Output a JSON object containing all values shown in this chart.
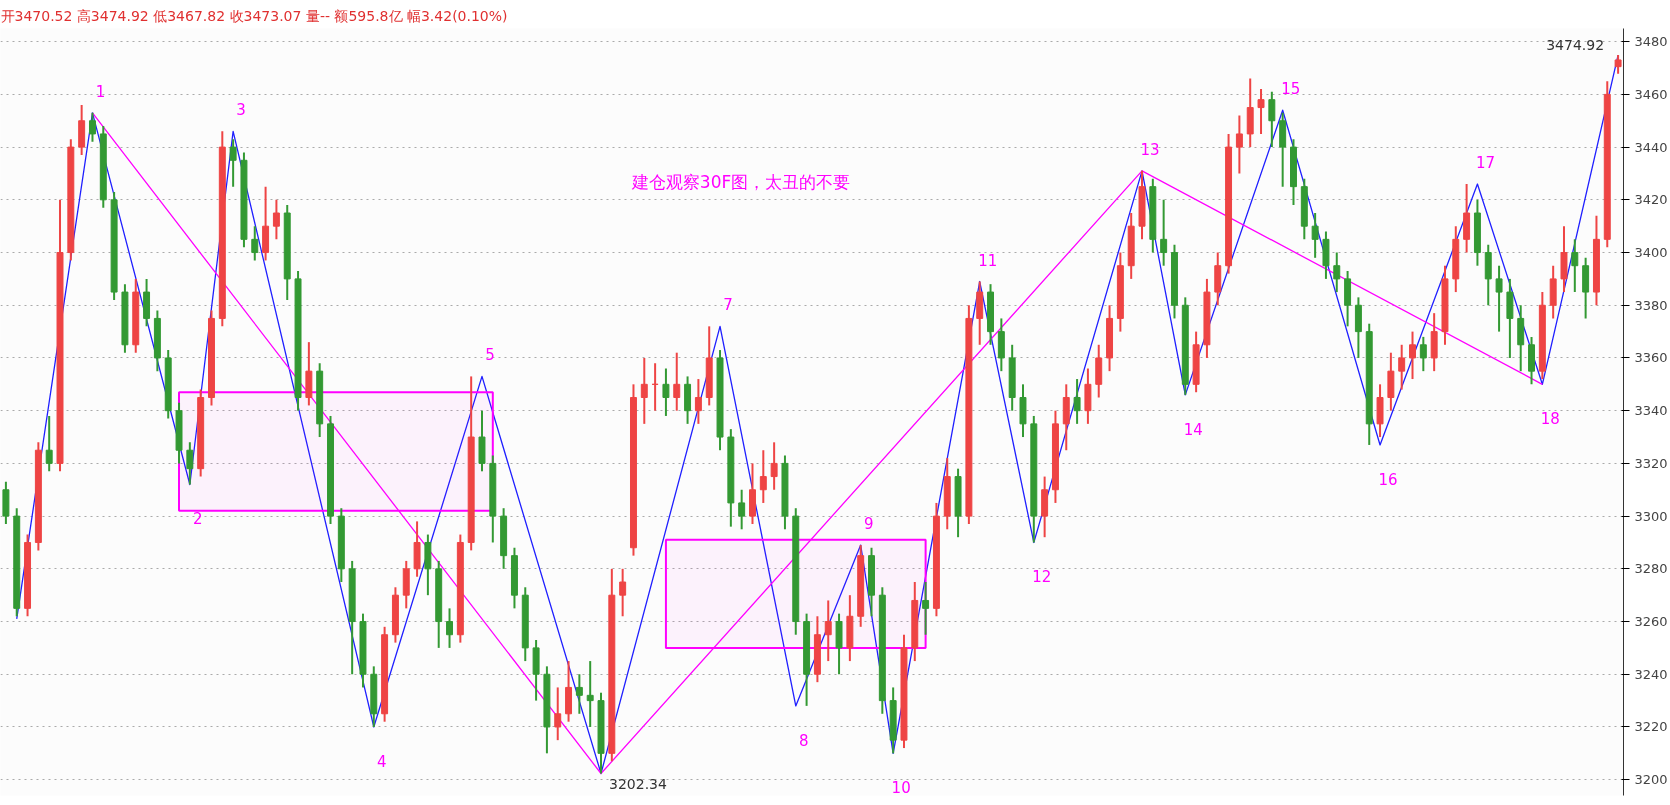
{
  "chart_data": {
    "type": "candlestick",
    "categories": [
      null,
      null,
      null,
      null,
      null,
      null,
      null,
      null,
      null,
      null,
      null,
      null,
      null,
      null,
      null,
      null,
      null,
      null,
      null,
      null,
      null,
      null,
      null,
      null,
      null,
      null,
      null,
      null,
      null,
      null,
      null,
      null,
      null,
      null,
      null,
      null,
      null,
      null,
      null,
      null,
      null,
      null,
      null,
      null,
      null,
      null,
      null,
      null,
      null,
      null,
      null,
      null,
      null,
      null,
      null,
      null,
      null,
      null,
      null,
      null,
      null,
      null,
      null,
      null,
      null,
      null,
      null,
      null,
      null,
      null,
      null,
      null,
      null,
      null,
      null,
      null,
      null,
      null,
      null,
      null,
      null,
      null,
      null,
      null,
      null,
      null,
      null,
      null,
      null,
      null,
      null,
      null,
      null,
      null,
      null,
      null,
      null,
      null,
      null,
      null,
      null,
      null,
      null,
      null,
      null,
      null,
      null,
      null,
      null,
      null,
      null,
      null,
      null,
      null,
      null,
      null,
      null,
      null,
      null,
      null,
      null,
      null,
      null,
      null,
      null,
      null,
      null,
      null,
      null,
      null,
      null,
      null,
      null,
      null,
      null,
      null,
      null,
      null,
      null,
      null,
      null,
      null,
      null,
      null,
      null,
      null,
      null,
      null,
      null,
      null
    ],
    "ohlc": [
      [
        3310,
        3313,
        3297,
        3300
      ],
      [
        3300,
        3303,
        3262,
        3265
      ],
      [
        3265,
        3293,
        3262,
        3290
      ],
      [
        3290,
        3328,
        3287,
        3325
      ],
      [
        3325,
        3338,
        3317,
        3320
      ],
      [
        3320,
        3420,
        3317,
        3400
      ],
      [
        3400,
        3443,
        3397,
        3440
      ],
      [
        3440,
        3456,
        3437,
        3450
      ],
      [
        3450,
        3453,
        3442,
        3445
      ],
      [
        3445,
        3448,
        3417,
        3420
      ],
      [
        3420,
        3423,
        3382,
        3385
      ],
      [
        3385,
        3388,
        3362,
        3365
      ],
      [
        3365,
        3390,
        3362,
        3385
      ],
      [
        3385,
        3390,
        3372,
        3375
      ],
      [
        3375,
        3378,
        3355,
        3360
      ],
      [
        3360,
        3363,
        3337,
        3340
      ],
      [
        3340,
        3343,
        3320,
        3325
      ],
      [
        3325,
        3328,
        3312,
        3318
      ],
      [
        3318,
        3348,
        3315,
        3345
      ],
      [
        3345,
        3378,
        3342,
        3375
      ],
      [
        3375,
        3446,
        3372,
        3440
      ],
      [
        3440,
        3443,
        3425,
        3435
      ],
      [
        3435,
        3438,
        3402,
        3405
      ],
      [
        3405,
        3410,
        3397,
        3400
      ],
      [
        3400,
        3425,
        3397,
        3410
      ],
      [
        3410,
        3420,
        3405,
        3415
      ],
      [
        3415,
        3418,
        3382,
        3390
      ],
      [
        3390,
        3393,
        3340,
        3345
      ],
      [
        3345,
        3366,
        3342,
        3355
      ],
      [
        3355,
        3358,
        3330,
        3335
      ],
      [
        3335,
        3338,
        3297,
        3300
      ],
      [
        3300,
        3303,
        3275,
        3280
      ],
      [
        3280,
        3283,
        3240,
        3260
      ],
      [
        3260,
        3263,
        3235,
        3240
      ],
      [
        3240,
        3243,
        3220,
        3225
      ],
      [
        3225,
        3258,
        3222,
        3255
      ],
      [
        3255,
        3273,
        3252,
        3270
      ],
      [
        3270,
        3283,
        3265,
        3280
      ],
      [
        3280,
        3298,
        3277,
        3290
      ],
      [
        3290,
        3293,
        3270,
        3280
      ],
      [
        3280,
        3283,
        3250,
        3260
      ],
      [
        3260,
        3265,
        3250,
        3255
      ],
      [
        3255,
        3293,
        3252,
        3290
      ],
      [
        3290,
        3353,
        3287,
        3330
      ],
      [
        3330,
        3340,
        3317,
        3320
      ],
      [
        3320,
        3323,
        3290,
        3300
      ],
      [
        3300,
        3303,
        3280,
        3285
      ],
      [
        3285,
        3288,
        3265,
        3270
      ],
      [
        3270,
        3273,
        3245,
        3250
      ],
      [
        3250,
        3253,
        3230,
        3240
      ],
      [
        3240,
        3243,
        3210,
        3220
      ],
      [
        3220,
        3235,
        3215,
        3225
      ],
      [
        3225,
        3245,
        3222,
        3235
      ],
      [
        3235,
        3240,
        3225,
        3232
      ],
      [
        3232,
        3245,
        3220,
        3230
      ],
      [
        3230,
        3233,
        3202.34,
        3210
      ],
      [
        3210,
        3280,
        3207,
        3270
      ],
      [
        3270,
        3280,
        3262,
        3275
      ],
      [
        3288,
        3350,
        3285,
        3345
      ],
      [
        3345,
        3360,
        3335,
        3350
      ],
      [
        3350,
        3358,
        3340,
        3350
      ],
      [
        3350,
        3356,
        3338,
        3345
      ],
      [
        3345,
        3362,
        3340,
        3350
      ],
      [
        3350,
        3353,
        3335,
        3340
      ],
      [
        3340,
        3352,
        3335,
        3345
      ],
      [
        3345,
        3372,
        3342,
        3360
      ],
      [
        3360,
        3363,
        3325,
        3330
      ],
      [
        3330,
        3333,
        3296,
        3305
      ],
      [
        3305,
        3310,
        3295,
        3300
      ],
      [
        3300,
        3320,
        3297,
        3310
      ],
      [
        3310,
        3325,
        3305,
        3315
      ],
      [
        3315,
        3328,
        3310,
        3320
      ],
      [
        3320,
        3323,
        3295,
        3300
      ],
      [
        3300,
        3303,
        3255,
        3260
      ],
      [
        3260,
        3263,
        3228,
        3240
      ],
      [
        3240,
        3262,
        3237,
        3255
      ],
      [
        3255,
        3268,
        3245,
        3260
      ],
      [
        3260,
        3263,
        3240,
        3250
      ],
      [
        3250,
        3270,
        3245,
        3262
      ],
      [
        3262,
        3289,
        3258,
        3285
      ],
      [
        3285,
        3288,
        3262,
        3270
      ],
      [
        3270,
        3273,
        3225,
        3230
      ],
      [
        3230,
        3235,
        3210,
        3215
      ],
      [
        3215,
        3255,
        3212,
        3250
      ],
      [
        3250,
        3275,
        3245,
        3268
      ],
      [
        3268,
        3275,
        3255,
        3265
      ],
      [
        3265,
        3305,
        3262,
        3300
      ],
      [
        3300,
        3322,
        3295,
        3315
      ],
      [
        3315,
        3318,
        3292,
        3300
      ],
      [
        3300,
        3380,
        3297,
        3375
      ],
      [
        3375,
        3389,
        3365,
        3385
      ],
      [
        3385,
        3388,
        3365,
        3370
      ],
      [
        3370,
        3375,
        3355,
        3360
      ],
      [
        3360,
        3365,
        3340,
        3345
      ],
      [
        3345,
        3350,
        3330,
        3335
      ],
      [
        3335,
        3338,
        3290,
        3300
      ],
      [
        3300,
        3315,
        3292,
        3310
      ],
      [
        3310,
        3340,
        3305,
        3335
      ],
      [
        3335,
        3350,
        3325,
        3345
      ],
      [
        3345,
        3352,
        3335,
        3340
      ],
      [
        3340,
        3356,
        3335,
        3350
      ],
      [
        3350,
        3365,
        3345,
        3360
      ],
      [
        3360,
        3380,
        3355,
        3375
      ],
      [
        3375,
        3400,
        3370,
        3395
      ],
      [
        3395,
        3415,
        3390,
        3410
      ],
      [
        3410,
        3431,
        3405,
        3425
      ],
      [
        3425,
        3428,
        3400,
        3405
      ],
      [
        3405,
        3420,
        3395,
        3400
      ],
      [
        3400,
        3403,
        3375,
        3380
      ],
      [
        3380,
        3383,
        3346,
        3350
      ],
      [
        3350,
        3370,
        3347,
        3365
      ],
      [
        3365,
        3390,
        3360,
        3385
      ],
      [
        3385,
        3400,
        3380,
        3395
      ],
      [
        3395,
        3445,
        3392,
        3440
      ],
      [
        3440,
        3452,
        3430,
        3445
      ],
      [
        3445,
        3466,
        3440,
        3455
      ],
      [
        3455,
        3462,
        3445,
        3458
      ],
      [
        3458,
        3461,
        3440,
        3450
      ],
      [
        3450,
        3453,
        3425,
        3440
      ],
      [
        3440,
        3443,
        3418,
        3425
      ],
      [
        3425,
        3428,
        3405,
        3410
      ],
      [
        3410,
        3415,
        3398,
        3405
      ],
      [
        3405,
        3408,
        3390,
        3395
      ],
      [
        3395,
        3400,
        3385,
        3390
      ],
      [
        3390,
        3393,
        3372,
        3380
      ],
      [
        3380,
        3383,
        3360,
        3370
      ],
      [
        3370,
        3373,
        3327,
        3335
      ],
      [
        3335,
        3350,
        3330,
        3345
      ],
      [
        3345,
        3362,
        3340,
        3355
      ],
      [
        3355,
        3365,
        3348,
        3360
      ],
      [
        3360,
        3370,
        3352,
        3365
      ],
      [
        3365,
        3368,
        3355,
        3360
      ],
      [
        3360,
        3377,
        3355,
        3370
      ],
      [
        3370,
        3395,
        3365,
        3390
      ],
      [
        3390,
        3410,
        3385,
        3405
      ],
      [
        3405,
        3426,
        3400,
        3415
      ],
      [
        3415,
        3420,
        3395,
        3400
      ],
      [
        3400,
        3403,
        3380,
        3390
      ],
      [
        3390,
        3395,
        3370,
        3385
      ],
      [
        3385,
        3390,
        3360,
        3375
      ],
      [
        3375,
        3380,
        3355,
        3365
      ],
      [
        3365,
        3368,
        3350,
        3355
      ],
      [
        3355,
        3385,
        3352,
        3380
      ],
      [
        3380,
        3395,
        3375,
        3390
      ],
      [
        3390,
        3410,
        3385,
        3400
      ],
      [
        3400,
        3405,
        3385,
        3395
      ],
      [
        3395,
        3398,
        3375,
        3385
      ],
      [
        3385,
        3414,
        3380,
        3405
      ],
      [
        3405,
        3465,
        3402,
        3460
      ],
      [
        3470.52,
        3474.92,
        3467.82,
        3473.07
      ]
    ],
    "colors": [
      "#339933",
      "#339933",
      "#ee4444",
      "#ee4444",
      "#339933",
      "#ee4444",
      "#ee4444",
      "#ee4444",
      "#339933",
      "#339933",
      "#339933",
      "#339933",
      "#ee4444",
      "#339933",
      "#339933",
      "#339933",
      "#339933",
      "#339933",
      "#ee4444",
      "#ee4444",
      "#ee4444",
      "#339933",
      "#339933",
      "#339933",
      "#ee4444",
      "#ee4444",
      "#339933",
      "#339933",
      "#ee4444",
      "#339933",
      "#339933",
      "#339933",
      "#339933",
      "#339933",
      "#339933",
      "#ee4444",
      "#ee4444",
      "#ee4444",
      "#ee4444",
      "#339933",
      "#339933",
      "#339933",
      "#ee4444",
      "#ee4444",
      "#339933",
      "#339933",
      "#339933",
      "#339933",
      "#339933",
      "#339933",
      "#339933",
      "#ee4444",
      "#ee4444",
      "#339933",
      "#339933",
      "#339933",
      "#ee4444",
      "#ee4444",
      "#ee4444",
      "#ee4444",
      "#ee4444",
      "#339933",
      "#ee4444",
      "#339933",
      "#ee4444",
      "#ee4444",
      "#339933",
      "#339933",
      "#339933",
      "#ee4444",
      "#ee4444",
      "#ee4444",
      "#339933",
      "#339933",
      "#339933",
      "#ee4444",
      "#ee4444",
      "#339933",
      "#ee4444",
      "#ee4444",
      "#339933",
      "#339933",
      "#339933",
      "#ee4444",
      "#ee4444",
      "#339933",
      "#ee4444",
      "#ee4444",
      "#339933",
      "#ee4444",
      "#ee4444",
      "#339933",
      "#339933",
      "#339933",
      "#339933",
      "#339933",
      "#ee4444",
      "#ee4444",
      "#ee4444",
      "#339933",
      "#ee4444",
      "#ee4444",
      "#ee4444",
      "#ee4444",
      "#ee4444",
      "#ee4444",
      "#339933",
      "#339933",
      "#339933",
      "#339933",
      "#ee4444",
      "#ee4444",
      "#ee4444",
      "#ee4444",
      "#ee4444",
      "#ee4444",
      "#ee4444",
      "#339933",
      "#339933",
      "#339933",
      "#339933",
      "#339933",
      "#339933",
      "#339933",
      "#339933",
      "#339933",
      "#339933",
      "#ee4444",
      "#ee4444",
      "#ee4444",
      "#ee4444",
      "#339933",
      "#ee4444",
      "#ee4444",
      "#ee4444",
      "#ee4444",
      "#339933",
      "#339933",
      "#339933",
      "#339933",
      "#339933",
      "#339933",
      "#ee4444",
      "#ee4444",
      "#ee4444",
      "#339933",
      "#339933",
      "#ee4444",
      "#ee4444",
      "#ee4444"
    ],
    "series": [
      {
        "type": "line",
        "color": "#1f1fff",
        "values": [
          null,
          3261,
          null,
          null,
          null,
          null,
          null,
          null,
          3453,
          null,
          null,
          null,
          null,
          null,
          null,
          null,
          null,
          3312,
          null,
          null,
          null,
          3446,
          null,
          null,
          null,
          null,
          null,
          null,
          null,
          null,
          null,
          null,
          null,
          null,
          3220,
          null,
          null,
          null,
          null,
          null,
          null,
          null,
          null,
          null,
          3353,
          null,
          null,
          null,
          null,
          null,
          null,
          null,
          null,
          null,
          null,
          3202.34,
          null,
          null,
          null,
          null,
          null,
          null,
          null,
          null,
          null,
          null,
          3372,
          null,
          null,
          null,
          null,
          null,
          null,
          3228,
          null,
          null,
          null,
          null,
          null,
          3289,
          null,
          null,
          3210,
          null,
          null,
          null,
          null,
          null,
          null,
          null,
          3389,
          null,
          null,
          null,
          null,
          3290,
          null,
          null,
          null,
          null,
          null,
          null,
          null,
          null,
          null,
          3431,
          null,
          null,
          null,
          3346,
          null,
          null,
          null,
          null,
          null,
          null,
          null,
          null,
          3454,
          null,
          null,
          null,
          null,
          null,
          null,
          null,
          null,
          3327,
          null,
          null,
          null,
          null,
          null,
          null,
          null,
          null,
          3426,
          null,
          null,
          null,
          null,
          null,
          3350,
          null,
          null,
          null,
          null,
          null,
          null,
          3474.92
        ],
        "value_labels": [
          null,
          null,
          null,
          null,
          null,
          null,
          null,
          null,
          null,
          null,
          null,
          null,
          null,
          null,
          null,
          null,
          null,
          null,
          null,
          null,
          null,
          null,
          null,
          null,
          null,
          null,
          null,
          null,
          null,
          null,
          null,
          null,
          null,
          null,
          null,
          null,
          null,
          null,
          null,
          null,
          null,
          null,
          null,
          null,
          null,
          null,
          null,
          null,
          null,
          null,
          null,
          null,
          null,
          null,
          null,
          "3202.34",
          null,
          null,
          null,
          null,
          null,
          null,
          null,
          null,
          null,
          null,
          null,
          null,
          null,
          null,
          null,
          null,
          null,
          null,
          null,
          null,
          null,
          null,
          null,
          null,
          null,
          null,
          null,
          null,
          null,
          null,
          null,
          null,
          null,
          null,
          null,
          null,
          null,
          null,
          null,
          null,
          null,
          null,
          null,
          null,
          null,
          null,
          null,
          null,
          null,
          null,
          null,
          null,
          null,
          null,
          null,
          null,
          null,
          null,
          null,
          null,
          null,
          null,
          null,
          null,
          null,
          null,
          null,
          null,
          null,
          null,
          null,
          null,
          null,
          null,
          null,
          null,
          null,
          null,
          null,
          null,
          null,
          null,
          null,
          null,
          null,
          null,
          null,
          null,
          null,
          null,
          null,
          null,
          null,
          "3474.92"
        ]
      },
      {
        "type": "line",
        "color": "#ff00ff",
        "values": [
          null,
          null,
          null,
          null,
          null,
          null,
          null,
          null,
          3453,
          null,
          null,
          null,
          null,
          null,
          null,
          null,
          null,
          null,
          null,
          null,
          null,
          null,
          null,
          null,
          null,
          null,
          null,
          null,
          null,
          null,
          null,
          null,
          null,
          null,
          null,
          null,
          null,
          null,
          null,
          null,
          null,
          null,
          null,
          null,
          null,
          null,
          null,
          null,
          null,
          null,
          null,
          null,
          null,
          null,
          null,
          3202.34,
          null,
          null,
          null,
          null,
          null,
          null,
          null,
          null,
          null,
          null,
          null,
          null,
          null,
          null,
          null,
          null,
          null,
          null,
          null,
          null,
          null,
          null,
          null,
          null,
          null,
          null,
          null,
          null,
          null,
          null,
          null,
          null,
          null,
          null,
          null,
          null,
          null,
          null,
          null,
          null,
          null,
          null,
          null,
          null,
          null,
          null,
          null,
          null,
          null,
          3431,
          null,
          null,
          null,
          null,
          null,
          null,
          null,
          null,
          null,
          null,
          null,
          null,
          null,
          null,
          null,
          null,
          null,
          null,
          null,
          null,
          null,
          null,
          null,
          null,
          null,
          null,
          null,
          null,
          null,
          null,
          null,
          null,
          null,
          null,
          null,
          null,
          3350,
          null,
          null,
          null,
          null,
          null,
          null,
          null
        ]
      },
      {
        "type": "line",
        "color": "#ff00ff",
        "values": [
          null,
          null,
          null,
          null,
          null,
          null,
          null,
          null,
          null,
          null,
          null,
          null,
          null,
          null,
          null,
          null,
          null,
          null,
          null,
          null,
          null,
          null,
          null,
          null,
          null,
          null,
          null,
          null,
          null,
          null,
          null,
          null,
          null,
          null,
          null,
          null,
          null,
          null,
          null,
          null,
          null,
          null,
          null,
          null,
          null,
          null,
          null,
          null,
          null,
          null,
          null,
          null,
          null,
          null,
          null,
          null,
          null,
          null,
          null,
          null,
          null,
          null,
          null,
          null,
          null,
          null,
          null,
          null,
          null,
          null,
          null,
          null,
          null,
          null,
          null,
          null,
          null,
          null,
          null,
          null,
          null,
          null,
          null,
          null,
          null,
          null,
          null,
          null,
          null,
          null,
          null,
          null,
          null,
          null,
          null,
          null,
          null,
          null,
          null,
          null,
          null,
          null,
          null,
          null,
          null,
          null,
          null,
          null,
          null,
          null,
          null,
          null,
          null,
          null,
          null,
          null,
          null,
          null,
          null,
          null,
          null,
          null,
          null,
          null,
          null,
          null,
          null,
          null,
          null,
          null,
          null,
          null,
          null,
          null,
          null,
          null,
          null,
          null,
          null,
          null,
          null,
          null,
          null,
          null,
          null,
          null,
          null,
          null,
          null,
          null
        ],
        "lower": [
          null,
          null,
          null,
          null,
          null,
          null,
          null,
          null,
          null,
          null,
          null,
          null,
          null,
          null,
          null,
          null,
          3302,
          3302,
          3302,
          3302,
          3302,
          3302,
          3302,
          3302,
          3302,
          3302,
          3302,
          3302,
          3302,
          3302,
          3302,
          3302,
          3302,
          3302,
          3302,
          3302,
          3302,
          3302,
          3302,
          3302,
          3302,
          3302,
          3302,
          3302,
          3302,
          3302,
          null,
          null,
          null,
          null,
          null,
          null,
          null,
          null,
          null,
          null,
          null,
          null,
          null,
          null,
          null,
          null,
          null,
          null,
          null,
          null,
          null,
          null,
          null,
          null,
          null,
          null,
          null,
          null,
          null,
          null,
          null,
          null,
          null,
          null,
          null,
          null,
          null,
          null,
          null,
          null,
          null,
          null,
          null,
          null,
          null,
          null,
          null,
          null,
          null,
          null,
          null,
          null,
          null,
          null,
          null,
          null,
          null,
          null,
          null,
          null,
          null,
          null,
          null,
          null,
          null,
          null,
          null,
          null,
          null,
          null,
          null,
          null,
          null,
          null,
          null,
          null,
          null,
          null,
          null,
          null,
          null,
          null,
          null,
          null,
          null,
          null,
          null,
          null,
          null,
          null,
          null,
          null,
          null,
          null,
          null,
          null,
          null,
          null,
          null,
          null,
          null,
          null,
          null,
          null
        ],
        "upper": [
          null,
          null,
          null,
          null,
          null,
          null,
          null,
          null,
          null,
          null,
          null,
          null,
          null,
          null,
          null,
          null,
          3347,
          3347,
          3347,
          3347,
          3347,
          3347,
          3347,
          3347,
          3347,
          3347,
          3347,
          3347,
          3347,
          3347,
          3347,
          3347,
          3347,
          3347,
          3347,
          3347,
          3347,
          3347,
          3347,
          3347,
          3347,
          3347,
          3347,
          3347,
          3347,
          3347,
          null,
          null,
          null,
          null,
          null,
          null,
          null,
          null,
          null,
          null,
          null,
          null,
          null,
          null,
          null,
          null,
          null,
          null,
          null,
          null,
          null,
          null,
          null,
          null,
          null,
          null,
          null,
          null,
          null,
          null,
          null,
          null,
          null,
          null,
          null,
          null,
          null,
          null,
          null,
          null,
          null,
          null,
          null,
          null,
          null,
          null,
          null,
          null,
          null,
          null,
          null,
          null,
          null,
          null,
          null,
          null,
          null,
          null,
          null,
          null,
          null,
          null,
          null,
          null,
          null,
          null,
          null,
          null,
          null,
          null,
          null,
          null,
          null,
          null,
          null,
          null,
          null,
          null,
          null,
          null,
          null,
          null,
          null,
          null,
          null,
          null,
          null,
          null,
          null,
          null,
          null,
          null,
          null,
          null,
          null,
          null,
          null,
          null,
          null,
          null,
          null,
          null,
          null,
          null
        ]
      },
      {
        "type": "line",
        "color": "#ff00ff",
        "values": [
          null,
          null,
          null,
          null,
          null,
          null,
          null,
          null,
          null,
          null,
          null,
          null,
          null,
          null,
          null,
          null,
          null,
          null,
          null,
          null,
          null,
          null,
          null,
          null,
          null,
          null,
          null,
          null,
          null,
          null,
          null,
          null,
          null,
          null,
          null,
          null,
          null,
          null,
          null,
          null,
          null,
          null,
          null,
          null,
          null,
          null,
          null,
          null,
          null,
          null,
          null,
          null,
          null,
          null,
          null,
          null,
          null,
          null,
          null,
          null,
          null,
          null,
          null,
          null,
          null,
          null,
          null,
          null,
          null,
          null,
          null,
          null,
          null,
          null,
          null,
          null,
          null,
          null,
          null,
          null,
          null,
          null,
          null,
          null,
          null,
          null,
          null,
          null,
          null,
          null,
          null,
          null,
          null,
          null,
          null,
          null,
          null,
          null,
          null,
          null,
          null,
          null,
          null,
          null,
          null,
          null,
          null,
          null,
          null,
          null,
          null,
          null,
          null,
          null,
          null,
          null,
          null,
          null,
          null,
          null,
          null,
          null,
          null,
          null,
          null,
          null,
          null,
          null,
          null,
          null,
          null,
          null,
          null,
          null,
          null,
          null,
          null,
          null,
          null,
          null,
          null,
          null,
          null,
          null,
          null,
          null,
          null,
          null,
          null,
          null
        ],
        "lower": [
          null,
          null,
          null,
          null,
          null,
          null,
          null,
          null,
          null,
          null,
          null,
          null,
          null,
          null,
          null,
          null,
          null,
          null,
          null,
          null,
          null,
          null,
          null,
          null,
          null,
          null,
          null,
          null,
          null,
          null,
          null,
          null,
          null,
          null,
          null,
          null,
          null,
          null,
          null,
          null,
          null,
          null,
          null,
          null,
          null,
          null,
          null,
          null,
          null,
          null,
          null,
          null,
          null,
          null,
          null,
          null,
          null,
          null,
          null,
          null,
          null,
          3250,
          3250,
          3250,
          3250,
          3250,
          3250,
          3250,
          3250,
          3250,
          3250,
          3250,
          3250,
          3250,
          3250,
          3250,
          3250,
          3250,
          3250,
          3250,
          3250,
          3250,
          3250,
          3250,
          3250,
          3250,
          null,
          null,
          null,
          null,
          null,
          null,
          null,
          null,
          null,
          null,
          null,
          null,
          null,
          null,
          null,
          null,
          null,
          null,
          null,
          null,
          null,
          null,
          null,
          null,
          null,
          null,
          null,
          null,
          null,
          null,
          null,
          null,
          null,
          null,
          null,
          null,
          null,
          null,
          null,
          null,
          null,
          null,
          null,
          null,
          null,
          null,
          null,
          null,
          null,
          null,
          null,
          null,
          null,
          null,
          null,
          null,
          null,
          null,
          null,
          null,
          null,
          null,
          null,
          null
        ],
        "upper": [
          null,
          null,
          null,
          null,
          null,
          null,
          null,
          null,
          null,
          null,
          null,
          null,
          null,
          null,
          null,
          null,
          null,
          null,
          null,
          null,
          null,
          null,
          null,
          null,
          null,
          null,
          null,
          null,
          null,
          null,
          null,
          null,
          null,
          null,
          null,
          null,
          null,
          null,
          null,
          null,
          null,
          null,
          null,
          null,
          null,
          null,
          null,
          null,
          null,
          null,
          null,
          null,
          null,
          null,
          null,
          null,
          null,
          null,
          null,
          null,
          null,
          3291,
          3291,
          3291,
          3291,
          3291,
          3291,
          3291,
          3291,
          3291,
          3291,
          3291,
          3291,
          3291,
          3291,
          3291,
          3291,
          3291,
          3291,
          3291,
          3291,
          3291,
          3291,
          3291,
          3291,
          3291,
          null,
          null,
          null,
          null,
          null,
          null,
          null,
          null,
          null,
          null,
          null,
          null,
          null,
          null,
          null,
          null,
          null,
          null,
          null,
          null,
          null,
          null,
          null,
          null,
          null,
          null,
          null,
          null,
          null,
          null,
          null,
          null,
          null,
          null,
          null,
          null,
          null,
          null,
          null,
          null,
          null,
          null,
          null,
          null,
          null,
          null,
          null,
          null,
          null,
          null,
          null,
          null,
          null,
          null,
          null,
          null,
          null,
          null,
          null,
          null,
          null,
          null,
          null,
          null
        ]
      }
    ],
    "ylim": [
      3194,
      3485
    ],
    "yticks": [
      3200,
      3220,
      3240,
      3260,
      3280,
      3300,
      3320,
      3340,
      3360,
      3380,
      3400,
      3420,
      3440,
      3460,
      3480
    ],
    "tick_labels": "y",
    "grid": "y",
    "annotations": [
      "开3470.52 高3474.92 低3467.82 收3473.07 量-- 额595.8亿 幅3.42(0.10%)",
      "建仓观察30F图，太丑的不要",
      "1",
      "2",
      "3",
      "4",
      "5",
      "7",
      "8",
      "9",
      "10",
      "11",
      "12",
      "13",
      "14",
      "15",
      "16",
      "17",
      "18"
    ]
  }
}
